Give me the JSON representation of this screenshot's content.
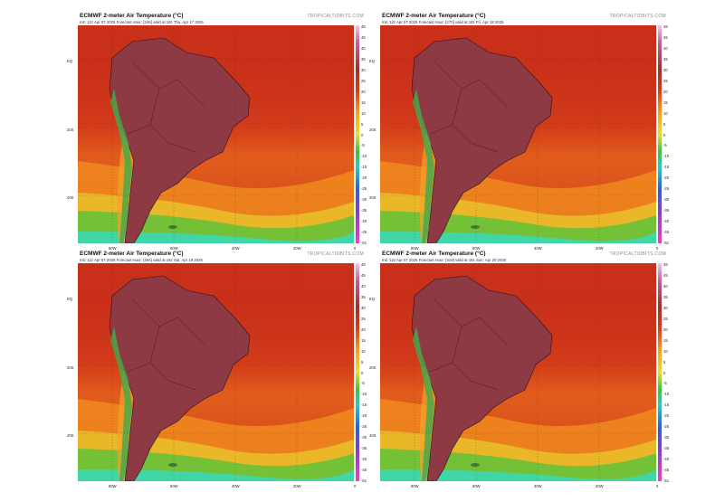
{
  "panels": [
    {
      "title": "ECMWF 2-meter Air Temperature (°C)",
      "subtitle": "Init: 12z Apr 07 2025   Forecast Hour: [246]   valid at 18z Thu, Apr 17 2025",
      "source": "TROPICALTIDBITS.COM"
    },
    {
      "title": "ECMWF 2-meter Air Temperature (°C)",
      "subtitle": "Init: 12z Apr 07 2025   Forecast Hour: [270]   valid at 18z Fri, Apr 18 2025",
      "source": "TROPICALTIDBITS.COM"
    },
    {
      "title": "ECMWF 2-meter Air Temperature (°C)",
      "subtitle": "Init: 12z Apr 07 2025   Forecast Hour: [294]   valid at 18z Sat, Apr 19 2025",
      "source": "TROPICALTIDBITS.COM"
    },
    {
      "title": "ECMWF 2-meter Air Temperature (°C)",
      "subtitle": "Init: 12z Apr 07 2025   Forecast Hour: [318]   valid at 18z Sun, Apr 20 2025",
      "source": "TROPICALTIDBITS.COM"
    }
  ],
  "colorbar_ticks": [
    "48",
    "45",
    "40",
    "35",
    "30",
    "25",
    "20",
    "15",
    "10",
    "5",
    "0",
    "-5",
    "-10",
    "-15",
    "-20",
    "-25",
    "-30",
    "-35",
    "-40",
    "-45",
    "-51"
  ],
  "lat_labels": [
    "EQ",
    "20S",
    "40S"
  ],
  "lon_labels": [
    "80W",
    "60W",
    "40W",
    "20W",
    "0"
  ],
  "colors": {
    "ocean_hot": "#c42a16",
    "ocean_warm": "#e85a1a",
    "land_hot": "#8a3540",
    "cool_green": "#3fb83a",
    "cold_cyan": "#33d6b8"
  }
}
